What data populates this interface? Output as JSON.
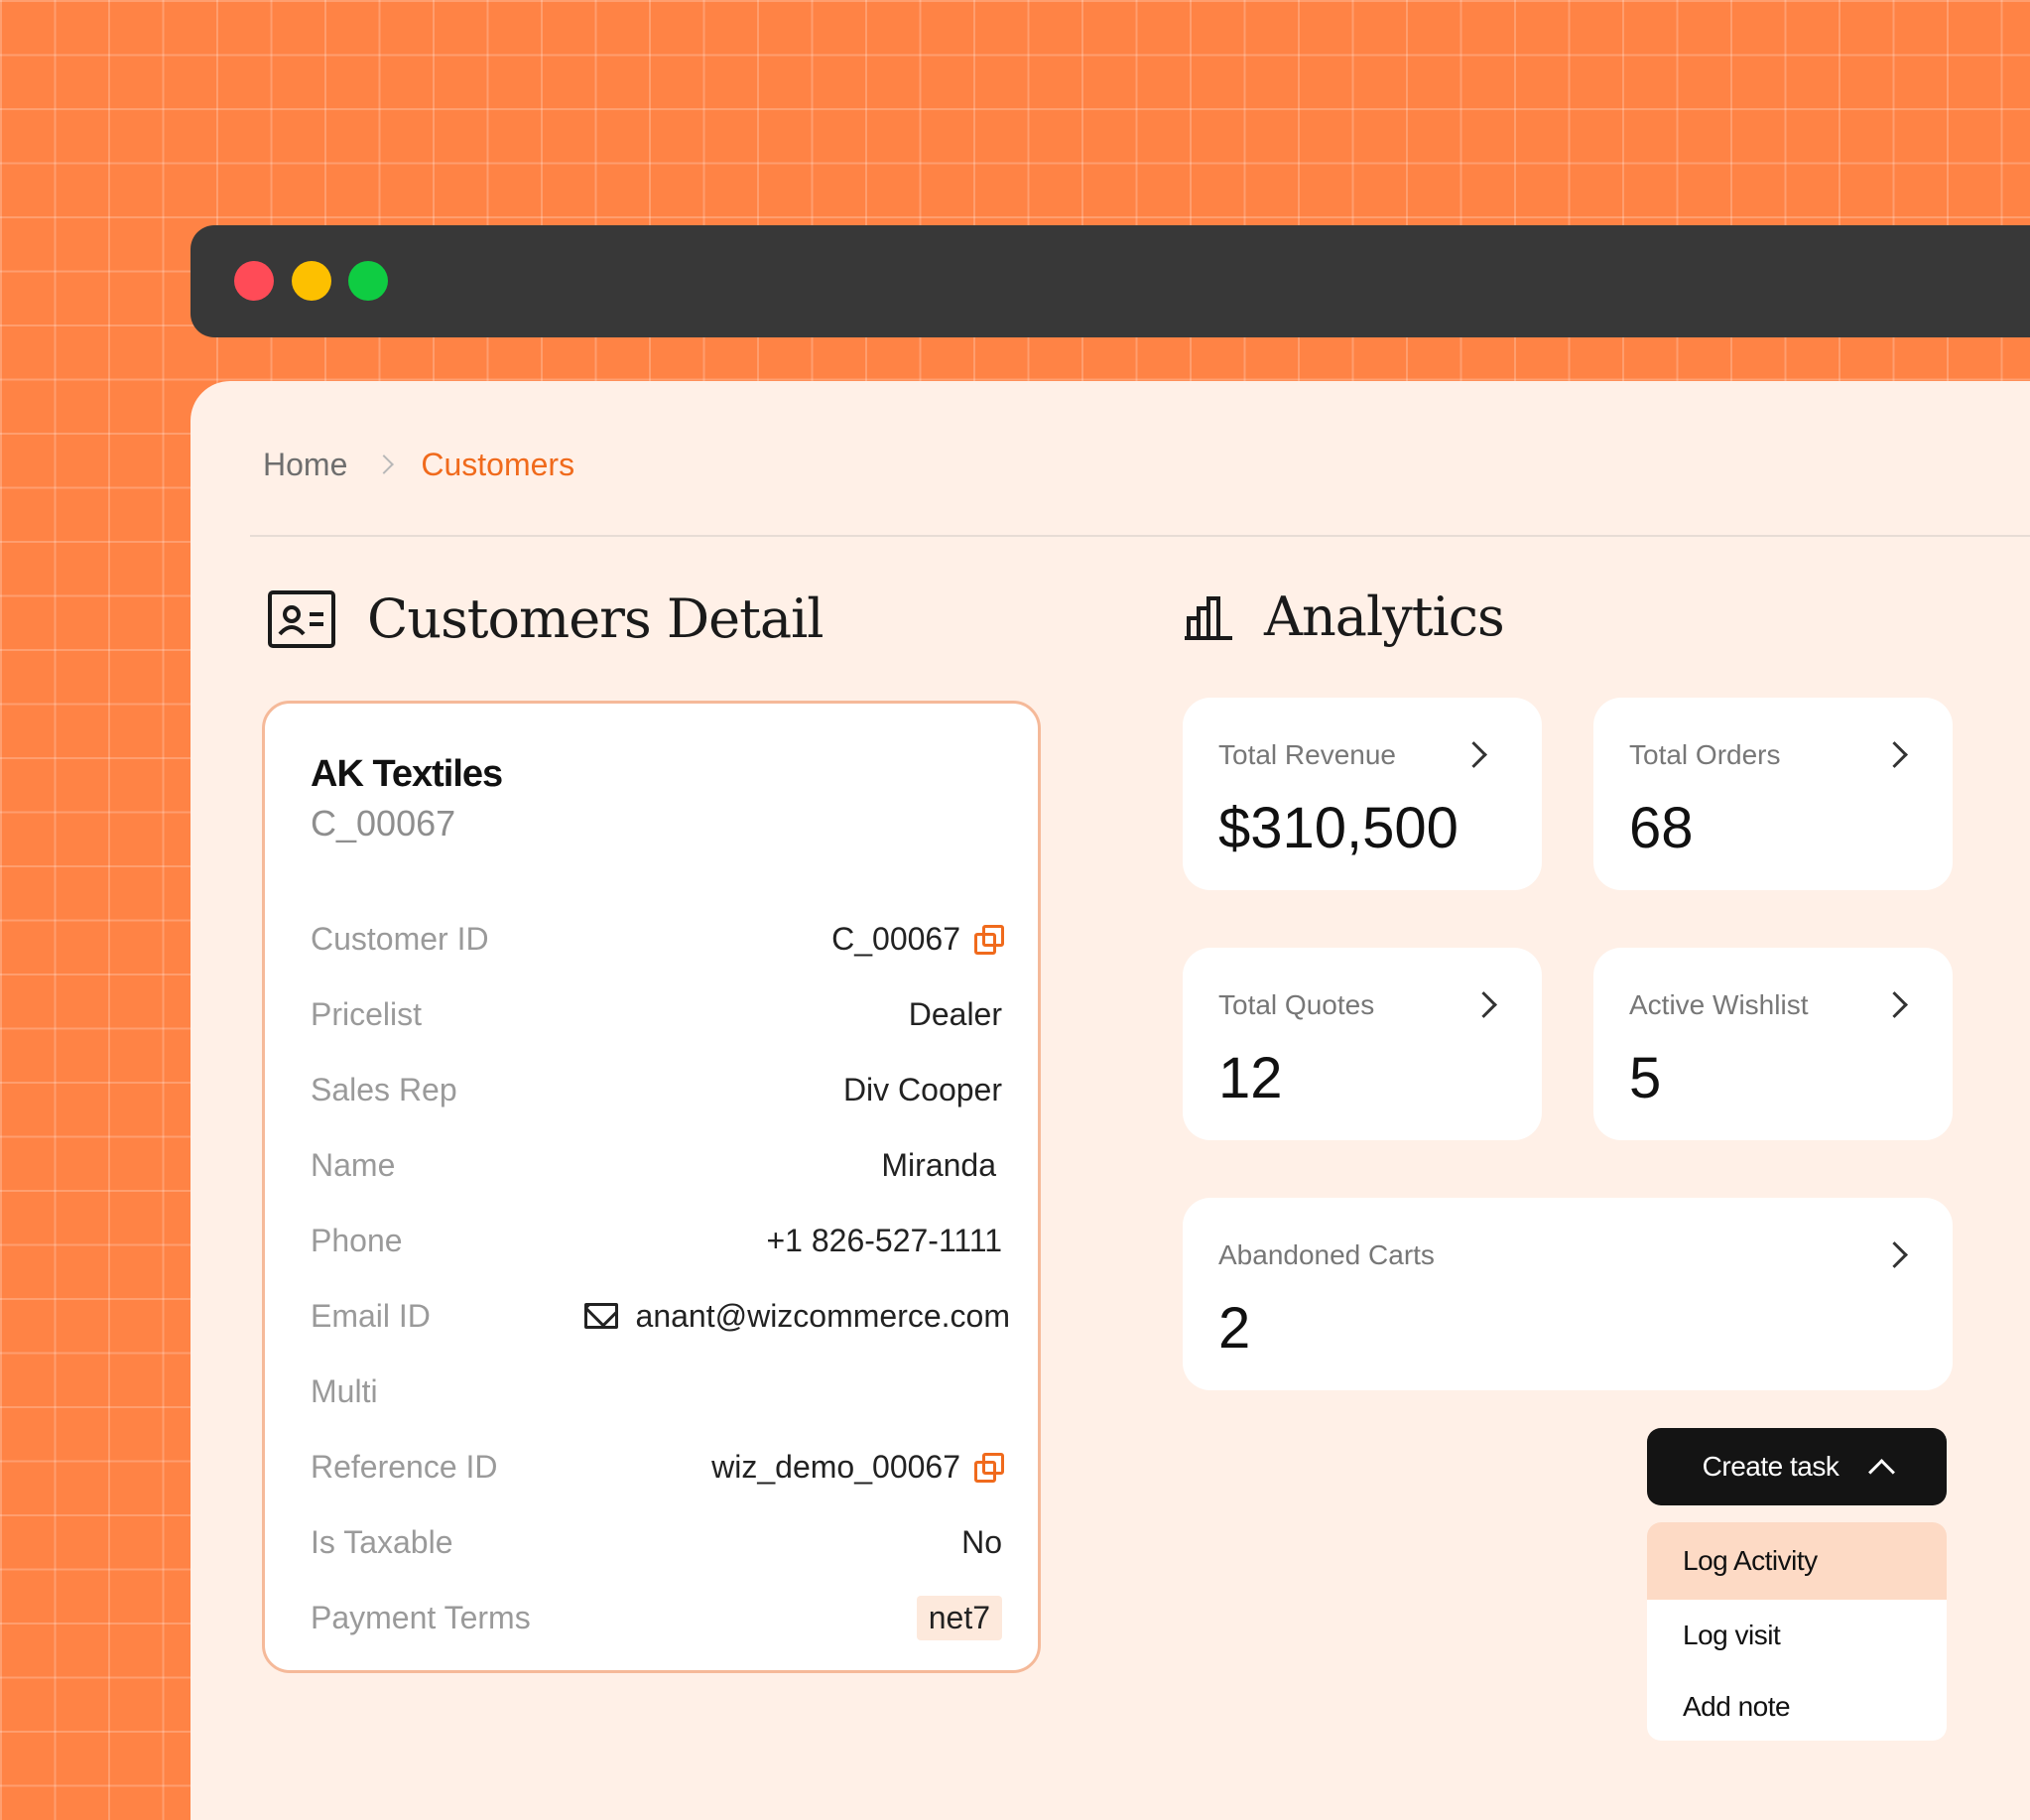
{
  "window": {
    "controls": [
      "close",
      "minimize",
      "maximize"
    ],
    "colors": {
      "close": "#FF4B57",
      "minimize": "#FDC000",
      "maximize": "#0FCC42"
    }
  },
  "breadcrumb": {
    "home": "Home",
    "current": "Customers"
  },
  "customer_detail": {
    "title": "Customers Detail",
    "icon": "contact-card-icon",
    "company": "AK Textiles",
    "company_code": "C_00067",
    "fields": [
      {
        "label": "Customer ID",
        "value": "C_00067"
      },
      {
        "label": "Pricelist",
        "value": "Dealer"
      },
      {
        "label": "Sales Rep",
        "value": "Div Cooper"
      },
      {
        "label": "Name",
        "value": "Miranda"
      },
      {
        "label": "Phone",
        "value": "+1 826-527-1111"
      },
      {
        "label": "Email ID",
        "value": "anant@wizcommerce.com"
      },
      {
        "label": "Multi",
        "value": ""
      },
      {
        "label": "Reference ID",
        "value": "wiz_demo_00067"
      },
      {
        "label": "Is Taxable",
        "value": "No"
      },
      {
        "label": "Payment Terms",
        "value": "net7"
      }
    ]
  },
  "analytics": {
    "title": "Analytics",
    "icon": "bar-chart-icon",
    "stats": [
      {
        "label": "Total Revenue",
        "value": "$310,500"
      },
      {
        "label": "Total Orders",
        "value": "68"
      },
      {
        "label": "Total Quotes",
        "value": "12"
      },
      {
        "label": "Active Wishlist",
        "value": "5"
      },
      {
        "label": "Abandoned Carts",
        "value": "2"
      }
    ]
  },
  "actions": {
    "create_task": "Create task",
    "menu": [
      "Log Activity",
      "Log visit",
      "Add note"
    ]
  },
  "colors": {
    "accent": "#F06A1C",
    "background": "#FF8345",
    "panel": "#FFF0E7"
  }
}
